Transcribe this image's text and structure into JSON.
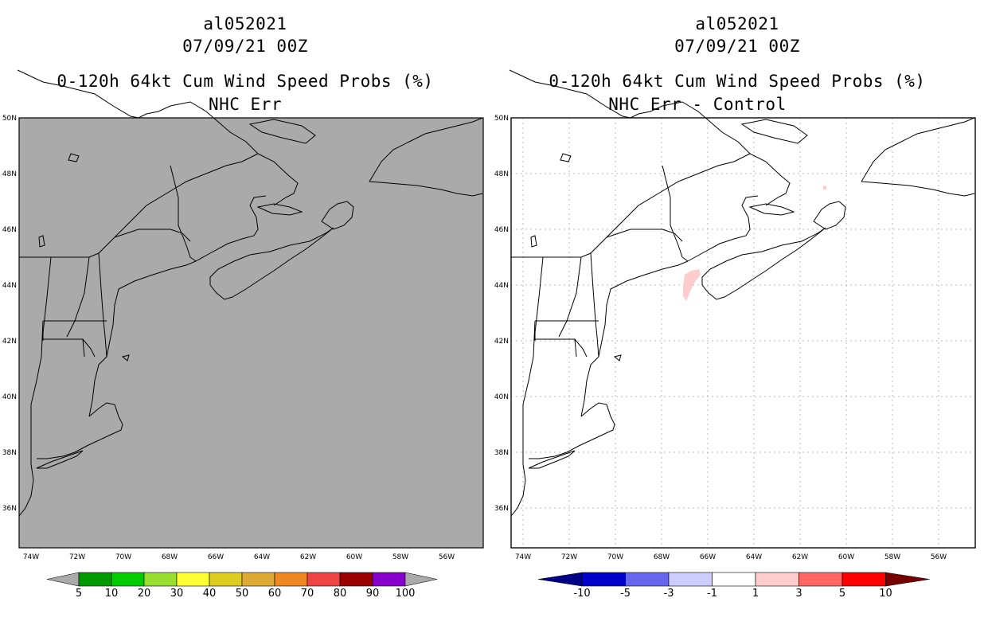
{
  "left_panel": {
    "storm_id": "al052021",
    "datetime": "07/09/21 00Z",
    "product": "0-120h 64kt Cum Wind Speed Probs (%)",
    "subtitle": "NHC Err",
    "background": "#aaaaaa"
  },
  "right_panel": {
    "storm_id": "al052021",
    "datetime": "07/09/21 00Z",
    "product": "0-120h 64kt Cum Wind Speed Probs (%)",
    "subtitle": "NHC Err - Control",
    "background": "#ffffff"
  },
  "axes": {
    "lat_labels": [
      "50N",
      "48N",
      "46N",
      "44N",
      "42N",
      "40N",
      "38N",
      "36N"
    ],
    "lon_labels": [
      "74W",
      "72W",
      "70W",
      "68W",
      "66W",
      "64W",
      "62W",
      "60W",
      "58W",
      "56W"
    ]
  },
  "left_colorbar": {
    "colors": [
      "#009900",
      "#00cc00",
      "#99dd33",
      "#ffff33",
      "#ddcc22",
      "#ddaa33",
      "#ee8822",
      "#ee4444",
      "#990000",
      "#8800cc"
    ],
    "end_color": "#aaaaaa",
    "labels": [
      "5",
      "10",
      "20",
      "30",
      "40",
      "50",
      "60",
      "70",
      "80",
      "90",
      "100"
    ]
  },
  "right_colorbar": {
    "colors": [
      "#0000cc",
      "#6666ee",
      "#ccccff",
      "#ffffff",
      "#ffcccc",
      "#ff6666",
      "#ff0000"
    ],
    "low_color": "#000088",
    "high_color": "#770000",
    "labels": [
      "-10",
      "-5",
      "-3",
      "-1",
      "1",
      "3",
      "5",
      "10"
    ]
  },
  "chart_data": {
    "type": "map",
    "region": "New England / Canadian Maritimes",
    "lat_range": [
      34.5,
      50
    ],
    "lon_range": [
      -74.5,
      -54.5
    ],
    "left_field": "no probabilities above 5%",
    "right_field": "small area of +1 to +3 difference near 44N 67W"
  }
}
